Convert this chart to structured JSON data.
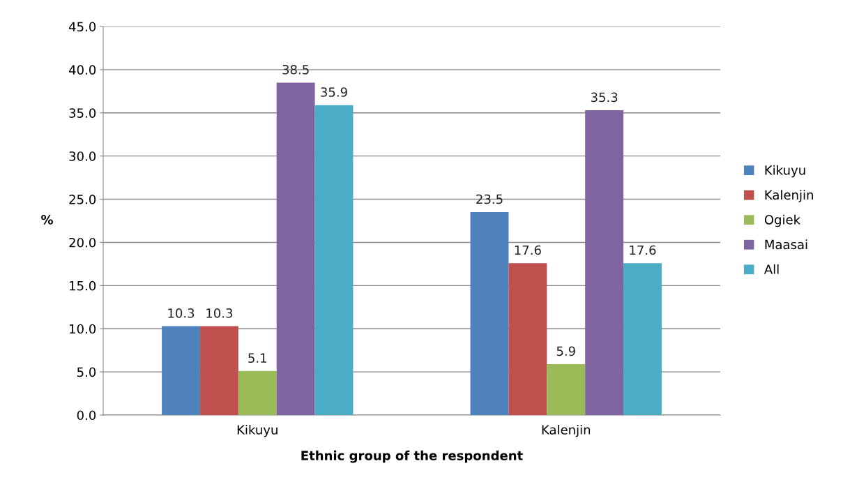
{
  "chart_data": {
    "type": "bar",
    "xlabel": "Ethnic group of the respondent",
    "ylabel": "%",
    "categories": [
      "Kikuyu",
      "Kalenjin"
    ],
    "series": [
      {
        "name": "Kikuyu",
        "color": "#4f81bd",
        "values": [
          10.3,
          23.5
        ]
      },
      {
        "name": "Kalenjin",
        "color": "#c0504d",
        "values": [
          10.3,
          17.6
        ]
      },
      {
        "name": "Ogiek",
        "color": "#9bbb59",
        "values": [
          5.1,
          5.9
        ]
      },
      {
        "name": "Maasai",
        "color": "#8064a2",
        "values": [
          38.5,
          35.3
        ]
      },
      {
        "name": "All",
        "color": "#4bacc6",
        "values": [
          35.9,
          17.6
        ]
      }
    ],
    "ylim": [
      0,
      45
    ],
    "yticks": [
      {
        "value": 0,
        "label": "0.0"
      },
      {
        "value": 5,
        "label": "5.0"
      },
      {
        "value": 10,
        "label": "10.0"
      },
      {
        "value": 15,
        "label": "15.0"
      },
      {
        "value": 20,
        "label": "20.0"
      },
      {
        "value": 25,
        "label": "25.0"
      },
      {
        "value": 30,
        "label": "30.0"
      },
      {
        "value": 35,
        "label": "35.0"
      },
      {
        "value": 40,
        "label": "40.0"
      },
      {
        "value": 45,
        "label": "45.0"
      }
    ],
    "grid": "y",
    "legend": "right",
    "data_labels": true
  }
}
